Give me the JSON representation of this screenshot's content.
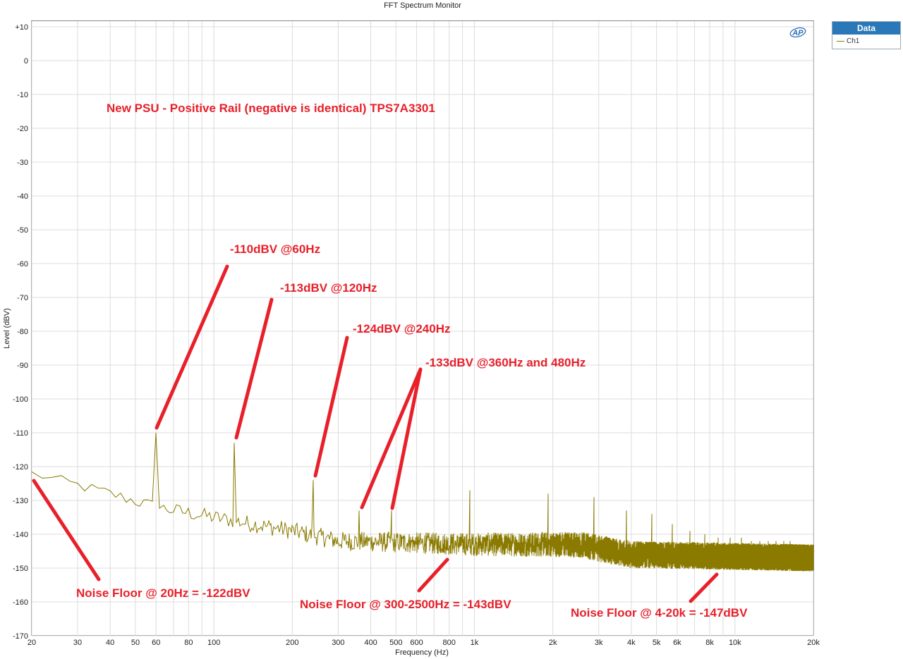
{
  "chart_data": {
    "type": "line",
    "title": "FFT Spectrum Monitor",
    "xlabel": "Frequency (Hz)",
    "ylabel": "Level (dBV)",
    "x_scale": "log",
    "xlim": [
      20,
      20000
    ],
    "ylim": [
      -170,
      10
    ],
    "grid": true,
    "x_ticks": [
      {
        "v": 20,
        "t": "20"
      },
      {
        "v": 30,
        "t": "30"
      },
      {
        "v": 40,
        "t": "40"
      },
      {
        "v": 50,
        "t": "50"
      },
      {
        "v": 60,
        "t": "60"
      },
      {
        "v": 80,
        "t": "80"
      },
      {
        "v": 100,
        "t": "100"
      },
      {
        "v": 200,
        "t": "200"
      },
      {
        "v": 300,
        "t": "300"
      },
      {
        "v": 400,
        "t": "400"
      },
      {
        "v": 500,
        "t": "500"
      },
      {
        "v": 600,
        "t": "600"
      },
      {
        "v": 800,
        "t": "800"
      },
      {
        "v": 1000,
        "t": "1k"
      },
      {
        "v": 2000,
        "t": "2k"
      },
      {
        "v": 3000,
        "t": "3k"
      },
      {
        "v": 4000,
        "t": "4k"
      },
      {
        "v": 5000,
        "t": "5k"
      },
      {
        "v": 6000,
        "t": "6k"
      },
      {
        "v": 8000,
        "t": "8k"
      },
      {
        "v": 10000,
        "t": "10k"
      },
      {
        "v": 20000,
        "t": "20k"
      }
    ],
    "y_ticks": [
      {
        "v": 10,
        "t": "+10"
      },
      {
        "v": 0,
        "t": "0"
      },
      {
        "v": -10,
        "t": "-10"
      },
      {
        "v": -20,
        "t": "-20"
      },
      {
        "v": -30,
        "t": "-30"
      },
      {
        "v": -40,
        "t": "-40"
      },
      {
        "v": -50,
        "t": "-50"
      },
      {
        "v": -60,
        "t": "-60"
      },
      {
        "v": -70,
        "t": "-70"
      },
      {
        "v": -80,
        "t": "-80"
      },
      {
        "v": -90,
        "t": "-90"
      },
      {
        "v": -100,
        "t": "-100"
      },
      {
        "v": -110,
        "t": "-110"
      },
      {
        "v": -120,
        "t": "-120"
      },
      {
        "v": -130,
        "t": "-130"
      },
      {
        "v": -140,
        "t": "-140"
      },
      {
        "v": -150,
        "t": "-150"
      },
      {
        "v": -160,
        "t": "-160"
      },
      {
        "v": -170,
        "t": "-170"
      }
    ],
    "series": [
      {
        "name": "Ch1",
        "color": "#8a7a00",
        "noise_floor": [
          [
            20,
            -122
          ],
          [
            40,
            -128
          ],
          [
            60,
            -132
          ],
          [
            100,
            -135
          ],
          [
            200,
            -139
          ],
          [
            300,
            -142
          ],
          [
            1000,
            -143
          ],
          [
            2500,
            -143
          ],
          [
            4000,
            -146
          ],
          [
            20000,
            -147
          ]
        ],
        "peaks": [
          [
            60,
            -110
          ],
          [
            120,
            -113
          ],
          [
            240,
            -124
          ],
          [
            360,
            -133
          ],
          [
            480,
            -133
          ],
          [
            960,
            -127
          ],
          [
            1920,
            -128
          ],
          [
            2880,
            -129
          ],
          [
            3840,
            -133
          ],
          [
            4800,
            -134
          ],
          [
            5760,
            -137
          ],
          [
            6720,
            -139
          ],
          [
            7680,
            -140
          ],
          [
            8640,
            -141
          ],
          [
            9600,
            -141
          ],
          [
            10560,
            -141
          ],
          [
            11520,
            -142
          ],
          [
            12480,
            -142
          ],
          [
            13440,
            -142
          ],
          [
            14400,
            -142
          ],
          [
            15360,
            -142
          ],
          [
            16320,
            -142
          ],
          [
            17280,
            -143
          ],
          [
            18240,
            -143
          ],
          [
            19200,
            -143
          ]
        ]
      }
    ],
    "legend": {
      "title": "Data",
      "position": "outside-top-right"
    },
    "logo": "AP"
  },
  "annotations": [
    {
      "text": "New PSU - Positive Rail (negative is identical) TPS7A3301"
    },
    {
      "text": "-110dBV @60Hz"
    },
    {
      "text": "-113dBV @120Hz"
    },
    {
      "text": "-124dBV @240Hz"
    },
    {
      "text": "-133dBV @360Hz and 480Hz"
    },
    {
      "text": "Noise Floor @ 20Hz = -122dBV"
    },
    {
      "text": "Noise Floor @ 300-2500Hz = -143dBV"
    },
    {
      "text": "Noise Floor @ 4-20k = -147dBV"
    }
  ],
  "annotation_color": "#e8202a"
}
